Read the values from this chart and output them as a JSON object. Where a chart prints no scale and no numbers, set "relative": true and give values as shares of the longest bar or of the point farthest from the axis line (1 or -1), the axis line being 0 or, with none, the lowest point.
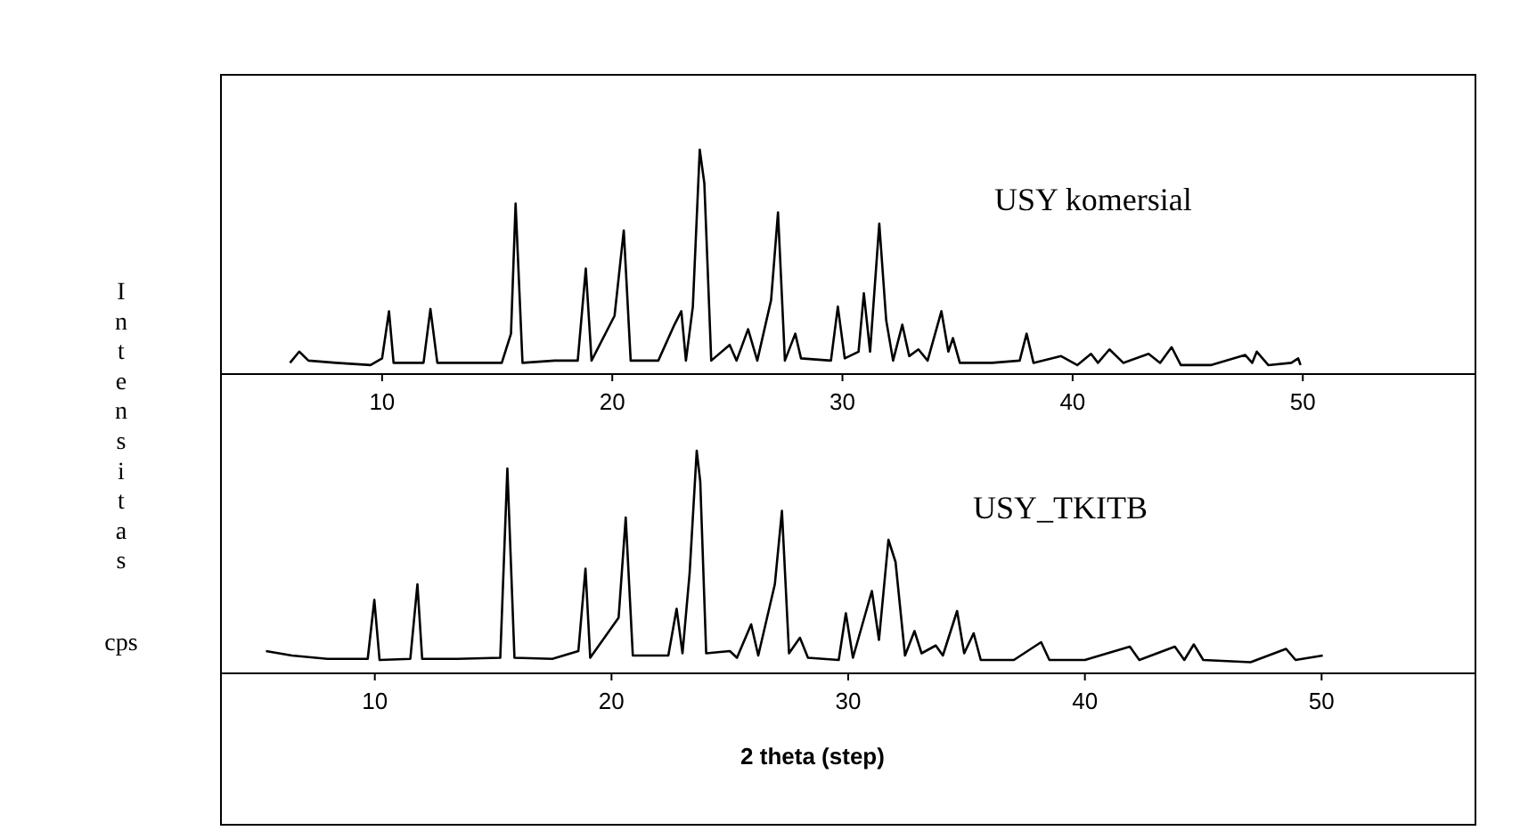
{
  "chart_data": [
    {
      "type": "line",
      "ylabel": "Intensitas",
      "relative": true,
      "xlim": [
        3,
        57.5
      ],
      "xticks": [
        10,
        20,
        30,
        40,
        50
      ],
      "series": [
        {
          "name": "USY komersial",
          "color": "#000000",
          "x": [
            6.0,
            6.4,
            6.8,
            8,
            9.5,
            10.0,
            10.3,
            10.5,
            11.8,
            12.1,
            12.4,
            13.5,
            15.2,
            15.6,
            15.8,
            16.1,
            17.5,
            18.5,
            18.85,
            19.1,
            20.1,
            20.5,
            20.8,
            22,
            22.7,
            23.0,
            23.2,
            23.5,
            23.8,
            24.0,
            24.3,
            25.1,
            25.4,
            25.9,
            26.3,
            26.9,
            27.2,
            27.5,
            27.95,
            28.2,
            29.5,
            29.8,
            30.1,
            30.7,
            30.93,
            31.2,
            31.6,
            31.9,
            32.2,
            32.6,
            32.9,
            33.3,
            33.7,
            34.3,
            34.6,
            34.8,
            35.1,
            36.5,
            37.7,
            38.0,
            38.3,
            39.5,
            40.2,
            40.8,
            41.1,
            41.6,
            42.2,
            43.3,
            43.8,
            44.3,
            44.7,
            46,
            47.5,
            47.8,
            48.0,
            48.5,
            49.5,
            49.8,
            49.9
          ],
          "values": [
            0.05,
            0.1,
            0.06,
            0.05,
            0.04,
            0.07,
            0.28,
            0.05,
            0.05,
            0.29,
            0.05,
            0.05,
            0.05,
            0.18,
            0.76,
            0.05,
            0.06,
            0.06,
            0.47,
            0.06,
            0.26,
            0.64,
            0.06,
            0.06,
            0.22,
            0.28,
            0.06,
            0.3,
            1.0,
            0.85,
            0.06,
            0.13,
            0.06,
            0.2,
            0.06,
            0.33,
            0.72,
            0.06,
            0.18,
            0.07,
            0.06,
            0.3,
            0.07,
            0.1,
            0.36,
            0.1,
            0.67,
            0.24,
            0.06,
            0.22,
            0.08,
            0.11,
            0.06,
            0.28,
            0.1,
            0.16,
            0.05,
            0.05,
            0.06,
            0.18,
            0.05,
            0.08,
            0.04,
            0.09,
            0.05,
            0.11,
            0.05,
            0.09,
            0.05,
            0.12,
            0.04,
            0.04,
            0.085,
            0.05,
            0.1,
            0.04,
            0.05,
            0.07,
            0.04
          ]
        }
      ]
    },
    {
      "type": "line",
      "ylabel": "cps",
      "xlabel": "2 theta (step)",
      "relative": true,
      "xlim": [
        3.5,
        56.5
      ],
      "xticks": [
        10,
        20,
        30,
        40,
        50
      ],
      "series": [
        {
          "name": "USY_TKITB",
          "color": "#000000",
          "x": [
            5.4,
            6.5,
            8,
            9.7,
            9.98,
            10.2,
            11.5,
            11.8,
            12.0,
            13.5,
            15.3,
            15.6,
            15.9,
            17.5,
            18.6,
            18.9,
            19.1,
            20.3,
            20.6,
            20.9,
            22.4,
            22.75,
            23.0,
            23.3,
            23.6,
            23.75,
            24.0,
            25.0,
            25.3,
            25.9,
            26.2,
            26.9,
            27.2,
            27.5,
            27.96,
            28.3,
            29.6,
            29.9,
            30.2,
            31.0,
            31.3,
            31.7,
            32.0,
            32.4,
            32.8,
            33.1,
            33.7,
            34.0,
            34.6,
            34.9,
            35.3,
            35.6,
            37,
            38.15,
            38.5,
            40,
            41.9,
            42.3,
            43.8,
            44.2,
            44.6,
            45.0,
            47,
            48.5,
            48.9,
            50.05
          ],
          "values": [
            0.1,
            0.08,
            0.065,
            0.065,
            0.33,
            0.06,
            0.065,
            0.4,
            0.065,
            0.065,
            0.07,
            0.92,
            0.07,
            0.065,
            0.1,
            0.47,
            0.07,
            0.25,
            0.7,
            0.08,
            0.08,
            0.29,
            0.09,
            0.45,
            1.0,
            0.86,
            0.09,
            0.1,
            0.07,
            0.22,
            0.08,
            0.4,
            0.73,
            0.09,
            0.16,
            0.07,
            0.06,
            0.27,
            0.07,
            0.37,
            0.15,
            0.6,
            0.5,
            0.08,
            0.19,
            0.09,
            0.125,
            0.08,
            0.28,
            0.09,
            0.18,
            0.06,
            0.06,
            0.14,
            0.06,
            0.06,
            0.12,
            0.06,
            0.12,
            0.06,
            0.13,
            0.06,
            0.05,
            0.11,
            0.06,
            0.08
          ]
        }
      ]
    }
  ]
}
